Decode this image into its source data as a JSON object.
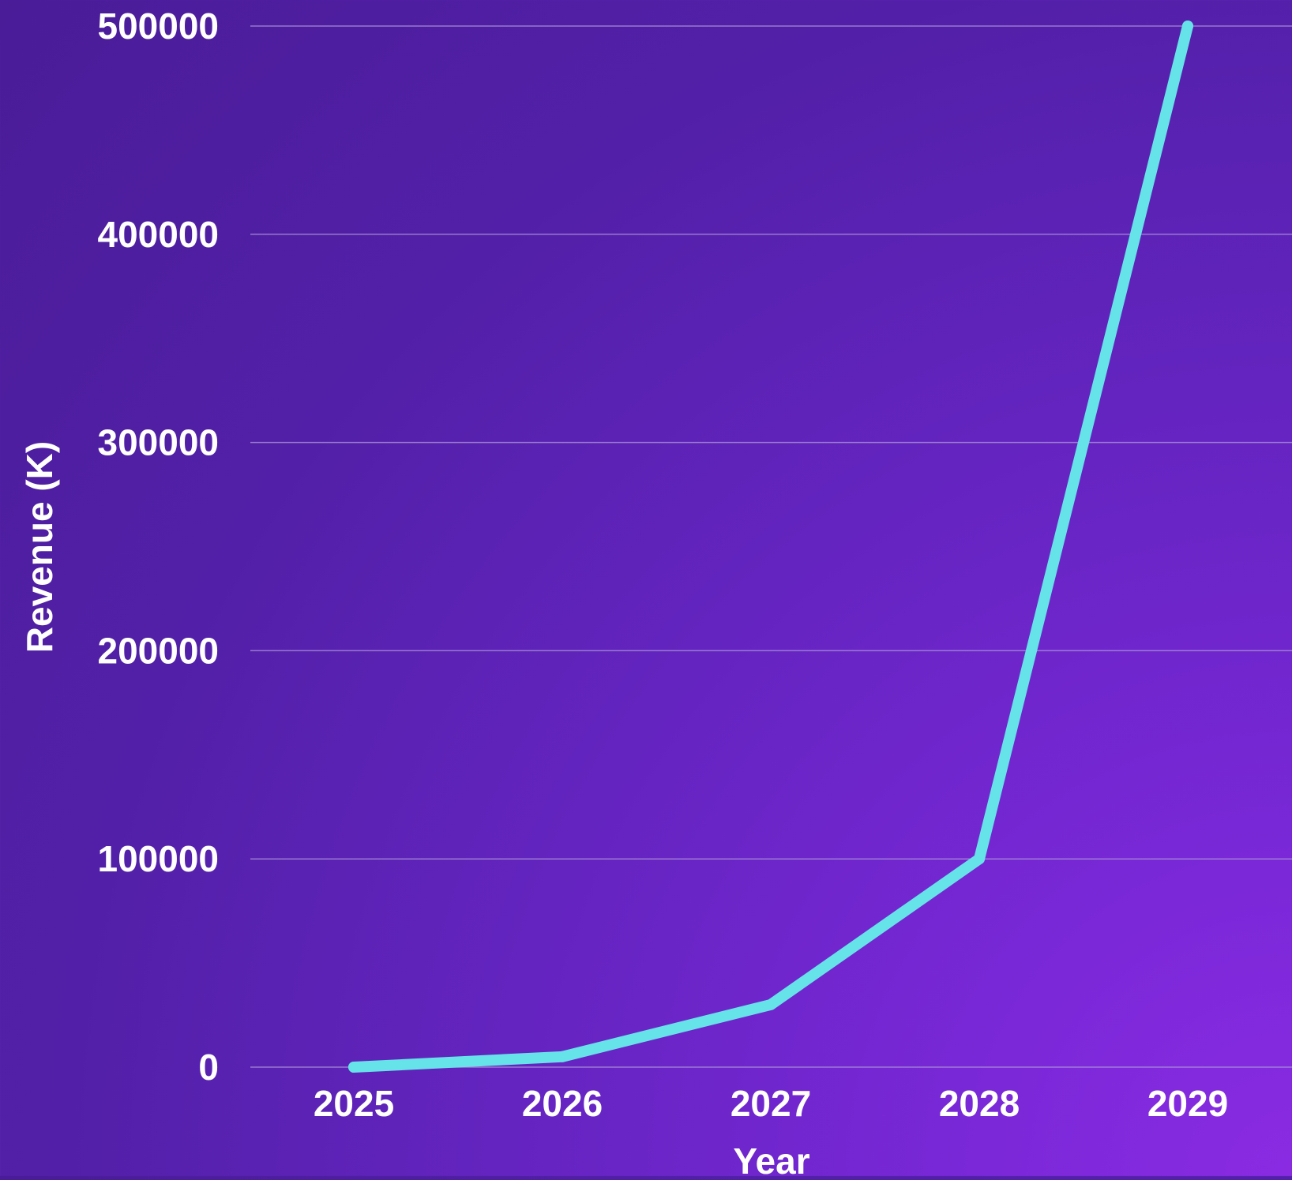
{
  "chart_data": {
    "type": "line",
    "title": "",
    "xlabel": "Year",
    "ylabel": "Revenue (K)",
    "categories": [
      "2025",
      "2026",
      "2027",
      "2028",
      "2029"
    ],
    "series": [
      {
        "values": [
          0,
          5000,
          30000,
          100000,
          500000
        ]
      }
    ],
    "ylim": [
      0,
      500000
    ],
    "yticks": [
      "0",
      "100000",
      "200000",
      "300000",
      "400000",
      "500000"
    ],
    "grid": true,
    "legend": "none",
    "colors": {
      "line": "#66e3e8",
      "grid": "#a98fd8",
      "text": "#ffffff"
    }
  }
}
